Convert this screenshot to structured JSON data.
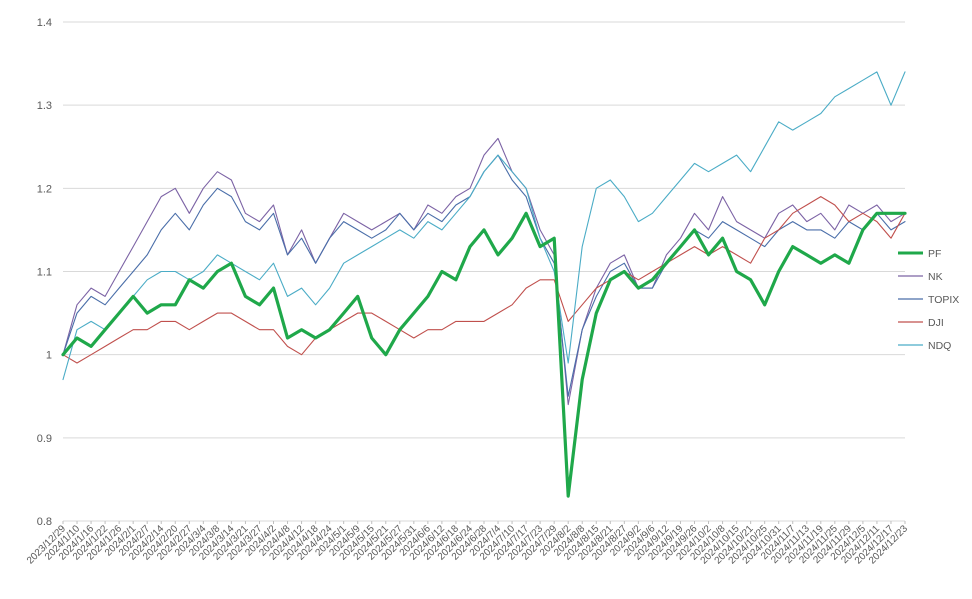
{
  "chart_data": {
    "type": "line",
    "ylim": [
      0.8,
      1.4
    ],
    "y_ticks": [
      "0.8",
      "0.9",
      "1",
      "1.1",
      "1.2",
      "1.3",
      "1.4"
    ],
    "grid": "horizontal",
    "legend_position": "right",
    "x": [
      "2023/12/29",
      "2024/1/10",
      "2024/1/16",
      "2024/1/22",
      "2024/1/26",
      "2024/2/1",
      "2024/2/7",
      "2024/2/14",
      "2024/2/20",
      "2024/2/27",
      "2024/3/4",
      "2024/3/8",
      "2024/3/14",
      "2024/3/21",
      "2024/3/27",
      "2024/4/2",
      "2024/4/8",
      "2024/4/12",
      "2024/4/18",
      "2024/4/24",
      "2024/5/1",
      "2024/5/9",
      "2024/5/15",
      "2024/5/21",
      "2024/5/27",
      "2024/5/31",
      "2024/6/6",
      "2024/6/12",
      "2024/6/18",
      "2024/6/24",
      "2024/6/28",
      "2024/7/4",
      "2024/7/10",
      "2024/7/17",
      "2024/7/23",
      "2024/7/29",
      "2024/8/2",
      "2024/8/8",
      "2024/8/15",
      "2024/8/21",
      "2024/8/27",
      "2024/9/2",
      "2024/9/6",
      "2024/9/12",
      "2024/9/19",
      "2024/9/26",
      "2024/10/2",
      "2024/10/8",
      "2024/10/15",
      "2024/10/21",
      "2024/10/25",
      "2024/10/31",
      "2024/11/7",
      "2024/11/13",
      "2024/11/19",
      "2024/11/25",
      "2024/11/29",
      "2024/12/5",
      "2024/12/11",
      "2024/12/17",
      "2024/12/23"
    ],
    "x_tick_labels": [
      "2023/12/29",
      "2024/1/10",
      "2024/1/16",
      "2024/1/22",
      "2024/1/26",
      "2024/2/1",
      "2024/2/7",
      "2024/2/14",
      "2024/2/20",
      "2024/2/27",
      "2024/3/4",
      "2024/3/8",
      "2024/3/14",
      "2024/3/21",
      "2024/3/27",
      "2024/4/2",
      "2024/4/8",
      "2024/4/12",
      "2024/4/18",
      "2024/4/24",
      "2024/5/1",
      "2024/5/9",
      "2024/5/15",
      "2024/5/21",
      "2024/5/27",
      "2024/5/31",
      "2024/6/6",
      "2024/6/12",
      "2024/6/18",
      "2024/6/24",
      "2024/6/28",
      "2024/7/4",
      "2024/7/10",
      "2024/7/17",
      "2024/7/23",
      "2024/7/29",
      "2024/8/2",
      "2024/8/8",
      "2024/8/15",
      "2024/8/21",
      "2024/8/27",
      "2024/9/2",
      "2024/9/6",
      "2024/9/12",
      "2024/9/19",
      "2024/9/26",
      "2024/10/2",
      "2024/10/8",
      "2024/10/15",
      "2024/10/21",
      "2024/10/25",
      "2024/10/31",
      "2024/11/7",
      "2024/11/13",
      "2024/11/19",
      "2024/11/25",
      "2024/11/29",
      "2024/12/5",
      "2024/12/11",
      "2024/12/17",
      "2024/12/23"
    ],
    "series": [
      {
        "name": "PF",
        "color": "#1fa84a",
        "width": 3.2,
        "values": [
          1.0,
          1.02,
          1.01,
          1.03,
          1.05,
          1.07,
          1.05,
          1.06,
          1.06,
          1.09,
          1.08,
          1.1,
          1.11,
          1.07,
          1.06,
          1.08,
          1.02,
          1.03,
          1.02,
          1.03,
          1.05,
          1.07,
          1.02,
          1.0,
          1.03,
          1.05,
          1.07,
          1.1,
          1.09,
          1.13,
          1.15,
          1.12,
          1.14,
          1.17,
          1.13,
          1.14,
          0.83,
          0.97,
          1.05,
          1.09,
          1.1,
          1.08,
          1.09,
          1.11,
          1.13,
          1.15,
          1.12,
          1.14,
          1.1,
          1.09,
          1.06,
          1.1,
          1.13,
          1.12,
          1.11,
          1.12,
          1.11,
          1.15,
          1.17,
          1.17,
          1.17
        ]
      },
      {
        "name": "NK",
        "color": "#7c63a5",
        "width": 1.1,
        "values": [
          1.0,
          1.06,
          1.08,
          1.07,
          1.1,
          1.13,
          1.16,
          1.19,
          1.2,
          1.17,
          1.2,
          1.22,
          1.21,
          1.17,
          1.16,
          1.18,
          1.12,
          1.15,
          1.11,
          1.14,
          1.17,
          1.16,
          1.15,
          1.16,
          1.17,
          1.15,
          1.18,
          1.17,
          1.19,
          1.2,
          1.24,
          1.26,
          1.22,
          1.2,
          1.15,
          1.12,
          0.94,
          1.03,
          1.08,
          1.11,
          1.12,
          1.08,
          1.08,
          1.12,
          1.14,
          1.17,
          1.15,
          1.19,
          1.16,
          1.15,
          1.14,
          1.17,
          1.18,
          1.16,
          1.17,
          1.15,
          1.18,
          1.17,
          1.18,
          1.16,
          1.17
        ]
      },
      {
        "name": "TOPIX",
        "color": "#4a6ea9",
        "width": 1.1,
        "values": [
          1.0,
          1.05,
          1.07,
          1.06,
          1.08,
          1.1,
          1.12,
          1.15,
          1.17,
          1.15,
          1.18,
          1.2,
          1.19,
          1.16,
          1.15,
          1.17,
          1.12,
          1.14,
          1.11,
          1.14,
          1.16,
          1.15,
          1.14,
          1.15,
          1.17,
          1.15,
          1.17,
          1.16,
          1.18,
          1.19,
          1.22,
          1.24,
          1.21,
          1.19,
          1.14,
          1.11,
          0.95,
          1.03,
          1.07,
          1.1,
          1.11,
          1.08,
          1.08,
          1.11,
          1.13,
          1.15,
          1.14,
          1.16,
          1.15,
          1.14,
          1.13,
          1.15,
          1.16,
          1.15,
          1.15,
          1.14,
          1.16,
          1.15,
          1.17,
          1.15,
          1.16
        ]
      },
      {
        "name": "DJI",
        "color": "#c0504d",
        "width": 1.1,
        "values": [
          1.0,
          0.99,
          1.0,
          1.01,
          1.02,
          1.03,
          1.03,
          1.04,
          1.04,
          1.03,
          1.04,
          1.05,
          1.05,
          1.04,
          1.03,
          1.03,
          1.01,
          1.0,
          1.02,
          1.03,
          1.04,
          1.05,
          1.05,
          1.04,
          1.03,
          1.02,
          1.03,
          1.03,
          1.04,
          1.04,
          1.04,
          1.05,
          1.06,
          1.08,
          1.09,
          1.09,
          1.04,
          1.06,
          1.08,
          1.09,
          1.1,
          1.09,
          1.1,
          1.11,
          1.12,
          1.13,
          1.12,
          1.13,
          1.12,
          1.11,
          1.14,
          1.15,
          1.17,
          1.18,
          1.19,
          1.18,
          1.16,
          1.17,
          1.16,
          1.14,
          1.17
        ]
      },
      {
        "name": "NDQ",
        "color": "#4bacc6",
        "width": 1.1,
        "values": [
          0.97,
          1.03,
          1.04,
          1.03,
          1.05,
          1.07,
          1.09,
          1.1,
          1.1,
          1.09,
          1.1,
          1.12,
          1.11,
          1.1,
          1.09,
          1.11,
          1.07,
          1.08,
          1.06,
          1.08,
          1.11,
          1.12,
          1.13,
          1.14,
          1.15,
          1.14,
          1.16,
          1.15,
          1.17,
          1.19,
          1.22,
          1.24,
          1.22,
          1.2,
          1.14,
          1.1,
          0.99,
          1.13,
          1.2,
          1.21,
          1.19,
          1.16,
          1.17,
          1.19,
          1.21,
          1.23,
          1.22,
          1.23,
          1.24,
          1.22,
          1.25,
          1.28,
          1.27,
          1.28,
          1.29,
          1.31,
          1.32,
          1.33,
          1.34,
          1.3,
          1.34
        ]
      }
    ]
  }
}
